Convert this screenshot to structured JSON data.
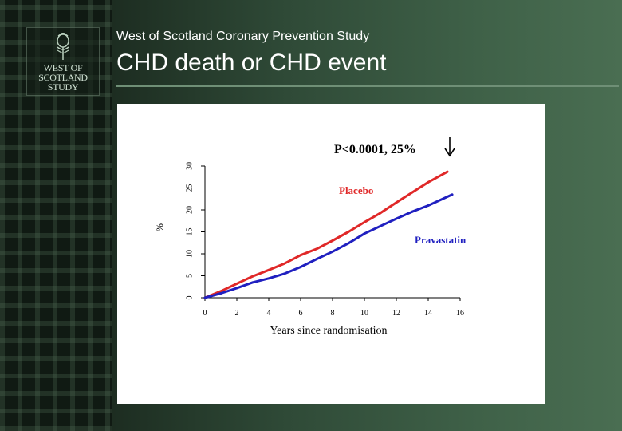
{
  "header": {
    "subtitle": "West of Scotland Coronary Prevention Study",
    "title": "CHD death or CHD event"
  },
  "logo": {
    "lines": [
      "WEST OF",
      "SCOTLAND",
      "STUDY"
    ]
  },
  "chart_data": {
    "type": "line",
    "annotation": "P<0.0001,  25%",
    "xlabel": "Years since randomisation",
    "ylabel": "%",
    "xlim": [
      0,
      16
    ],
    "ylim": [
      0,
      30
    ],
    "xticks": [
      0,
      2,
      4,
      6,
      8,
      10,
      12,
      14,
      16
    ],
    "yticks": [
      0,
      5,
      10,
      15,
      20,
      25,
      30
    ],
    "grid": false,
    "series": [
      {
        "name": "Placebo",
        "color": "#e02828",
        "x": [
          0,
          1,
          2,
          3,
          4,
          5,
          6,
          7,
          8,
          9,
          10,
          11,
          12,
          13,
          14,
          15.2
        ],
        "y": [
          0,
          1.5,
          3.2,
          4.9,
          6.3,
          7.8,
          9.7,
          11.1,
          13.0,
          15.0,
          17.2,
          19.3,
          21.7,
          24.0,
          26.3,
          28.7
        ]
      },
      {
        "name": "Pravastatin",
        "color": "#2020c0",
        "x": [
          0,
          1,
          2,
          3,
          4,
          5,
          6,
          7,
          8,
          9,
          10,
          11,
          12,
          13,
          14,
          15.5
        ],
        "y": [
          0,
          1.0,
          2.2,
          3.5,
          4.4,
          5.5,
          7.0,
          8.8,
          10.5,
          12.4,
          14.6,
          16.3,
          18.0,
          19.6,
          21.0,
          23.5
        ]
      }
    ]
  }
}
